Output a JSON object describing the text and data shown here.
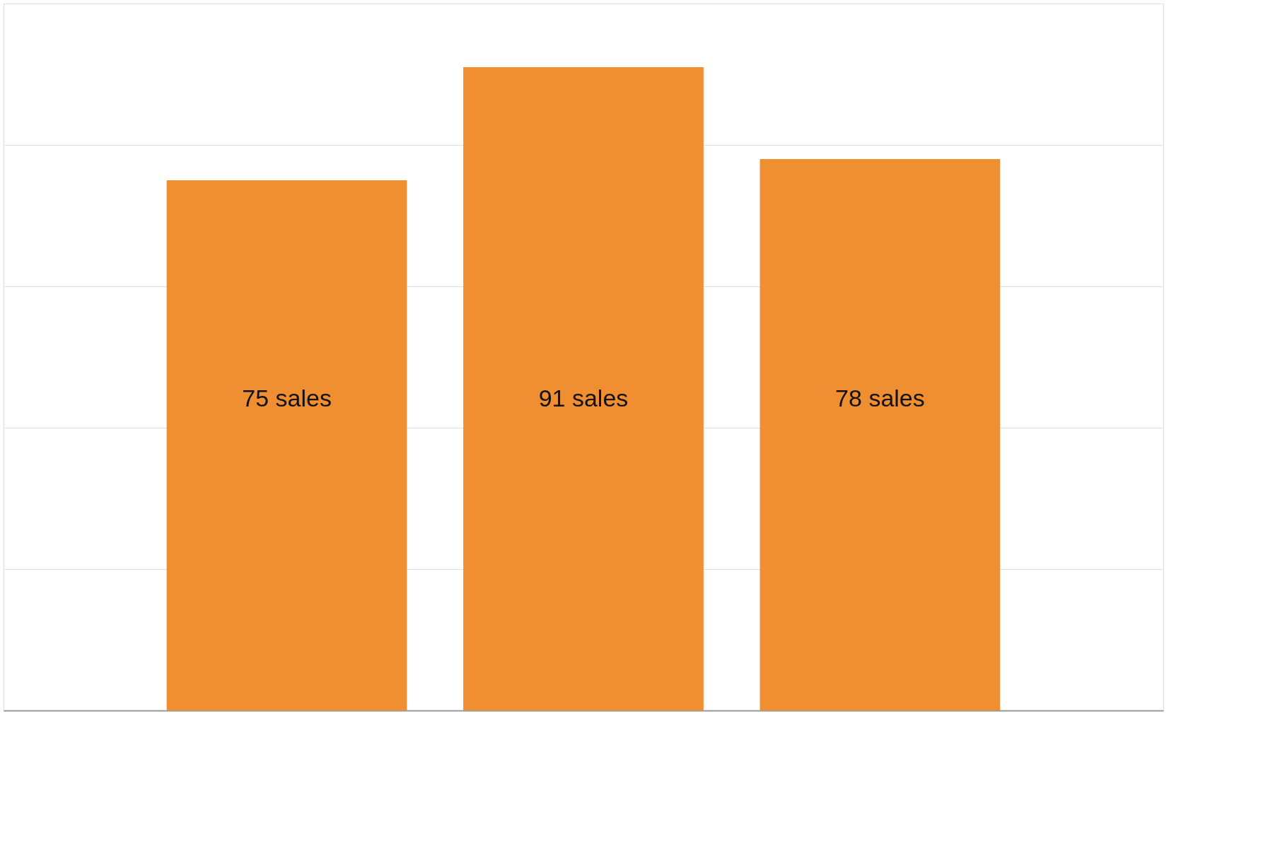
{
  "chart_data": {
    "type": "bar",
    "categories": [
      null,
      null,
      null
    ],
    "series": [
      {
        "color": "#f08e32",
        "values": [
          75,
          91,
          78
        ],
        "value_labels": [
          "75 sales",
          "91 sales",
          "78 sales"
        ]
      }
    ],
    "grid": "y",
    "tick_labels": false
  }
}
